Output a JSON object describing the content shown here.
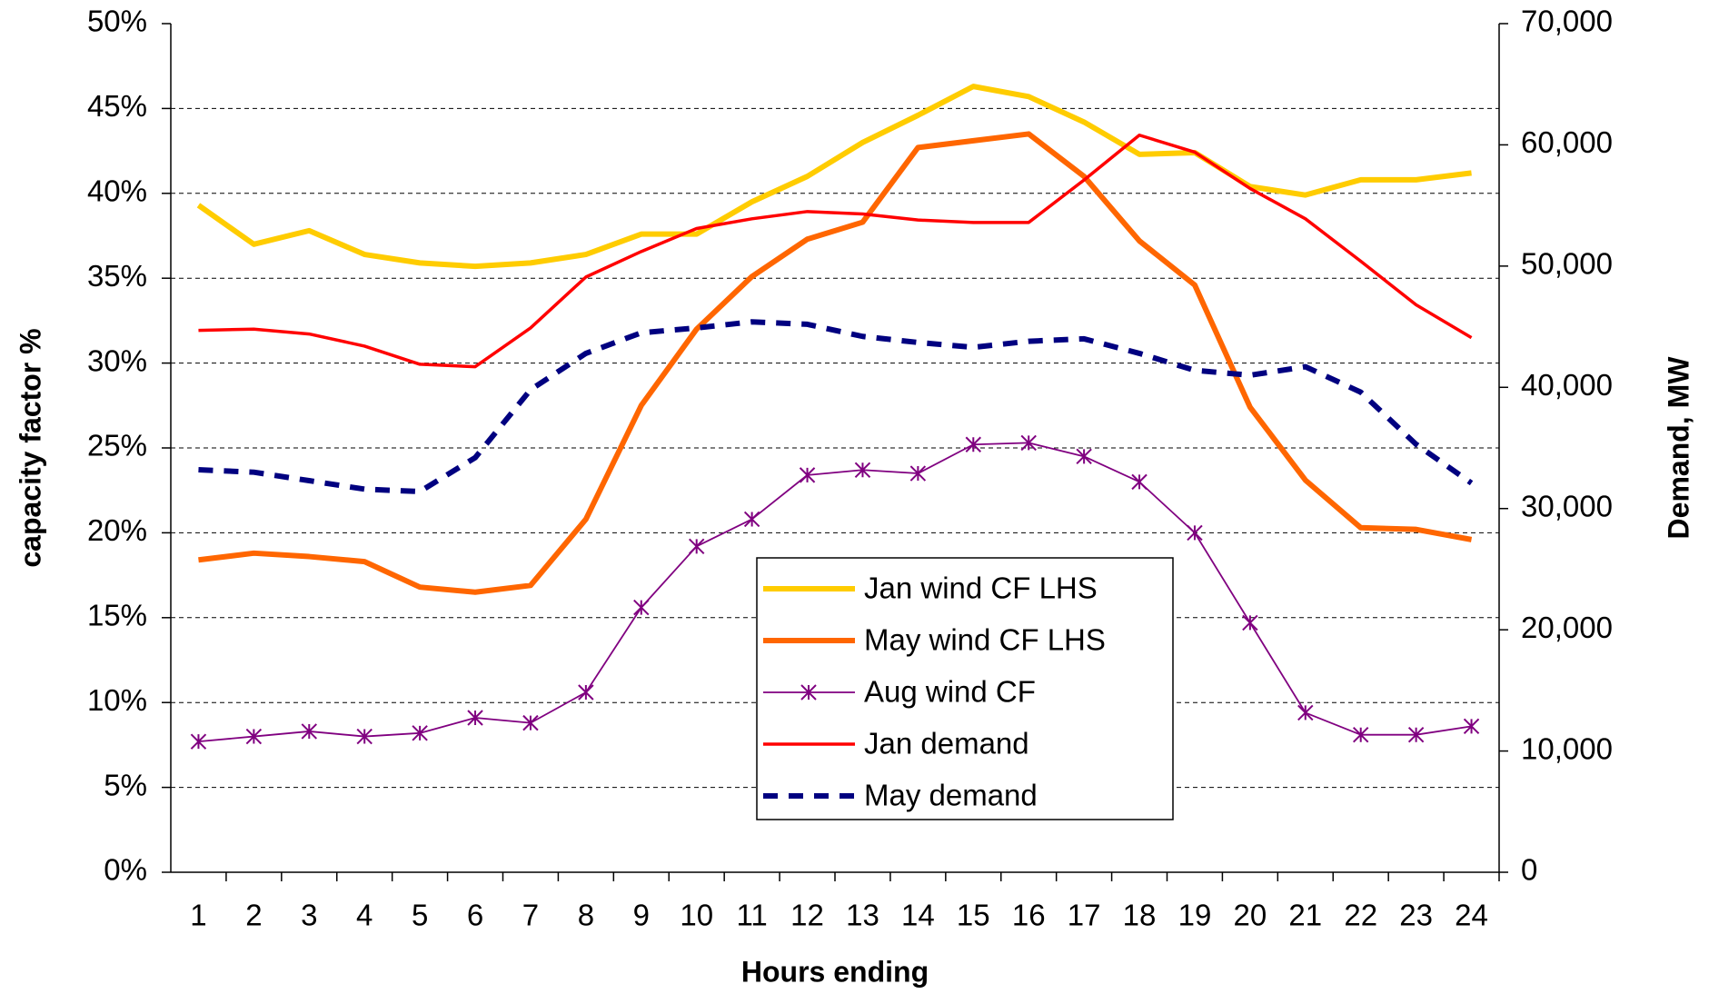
{
  "chart_data": {
    "type": "line",
    "x_label": "Hours ending",
    "y_label": "capacity factor %",
    "y2_label": "Demand, MW",
    "categories": [
      "1",
      "2",
      "3",
      "4",
      "5",
      "6",
      "7",
      "8",
      "9",
      "10",
      "11",
      "12",
      "13",
      "14",
      "15",
      "16",
      "17",
      "18",
      "19",
      "20",
      "21",
      "22",
      "23",
      "24"
    ],
    "ylim": [
      0,
      50
    ],
    "yticks": [
      {
        "value": 0,
        "label": "0%"
      },
      {
        "value": 5,
        "label": "5%"
      },
      {
        "value": 10,
        "label": "10%"
      },
      {
        "value": 15,
        "label": "15%"
      },
      {
        "value": 20,
        "label": "20%"
      },
      {
        "value": 25,
        "label": "25%"
      },
      {
        "value": 30,
        "label": "30%"
      },
      {
        "value": 35,
        "label": "35%"
      },
      {
        "value": 40,
        "label": "40%"
      },
      {
        "value": 45,
        "label": "45%"
      },
      {
        "value": 50,
        "label": "50%"
      }
    ],
    "y2lim": [
      0,
      70000
    ],
    "y2ticks": [
      0,
      {
        "value": 10000,
        "label": "10,000"
      },
      {
        "value": 20000,
        "label": "20,000"
      },
      {
        "value": 30000,
        "label": "30,000"
      },
      {
        "value": 40000,
        "label": "40,000"
      },
      {
        "value": 50000,
        "label": "50,000"
      },
      {
        "value": 60000,
        "label": "60,000"
      },
      {
        "value": 70000,
        "label": "70,000"
      }
    ],
    "grid": true,
    "series": [
      {
        "name": "Jan wind CF LHS",
        "color": "#ffcc00",
        "values": [
          39.3,
          37.0,
          37.8,
          36.4,
          35.9,
          35.7,
          35.9,
          36.4,
          37.6,
          37.6,
          39.5,
          41.0,
          43.0,
          44.6,
          46.3,
          45.7,
          44.2,
          42.3,
          42.4,
          40.4,
          39.9,
          40.8,
          40.8,
          41.2
        ]
      },
      {
        "name": "May wind CF LHS",
        "color": "#ff6600",
        "values": [
          18.4,
          18.8,
          18.6,
          18.3,
          16.8,
          16.5,
          16.9,
          20.8,
          27.5,
          32.0,
          35.1,
          37.3,
          38.3,
          42.7,
          43.1,
          43.5,
          41.0,
          37.2,
          34.6,
          27.4,
          23.1,
          20.3,
          20.2,
          19.6
        ]
      },
      {
        "name": "Aug wind CF",
        "color": "#800080",
        "marker": "asterisk",
        "values": [
          7.7,
          8.0,
          8.3,
          8.0,
          8.2,
          9.1,
          8.8,
          10.6,
          15.6,
          19.2,
          20.8,
          23.4,
          23.7,
          23.5,
          25.2,
          25.3,
          24.5,
          23.0,
          20.0,
          14.7,
          9.4,
          8.1,
          8.1,
          8.6
        ]
      },
      {
        "name": "Jan demand",
        "color": "#ff0000",
        "axis": "y2",
        "values": [
          44700,
          44800,
          44400,
          43400,
          41900,
          41700,
          44900,
          49100,
          51200,
          53100,
          53900,
          54500,
          54300,
          53800,
          53600,
          53600,
          57100,
          60800,
          59400,
          56400,
          53900,
          50400,
          46800,
          44100
        ]
      },
      {
        "name": "May demand",
        "color": "#000080",
        "axis": "y2",
        "dashed": true,
        "values": [
          33200,
          33000,
          32300,
          31600,
          31400,
          34200,
          39800,
          42800,
          44500,
          44900,
          45400,
          45200,
          44200,
          43700,
          43300,
          43800,
          44000,
          42800,
          41400,
          41000,
          41700,
          39600,
          35300,
          32100
        ]
      }
    ]
  }
}
